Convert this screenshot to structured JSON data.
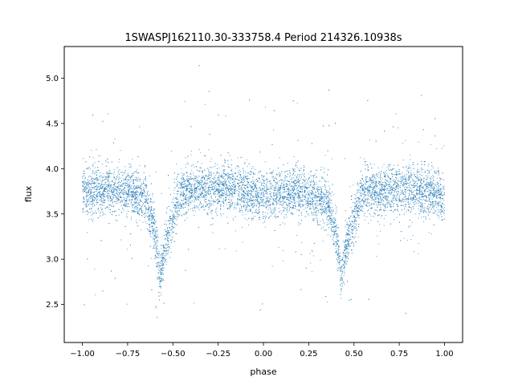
{
  "chart_data": {
    "type": "scatter",
    "title": "1SWASPJ162110.30-333758.4 Period 214326.10938s",
    "xlabel": "phase",
    "ylabel": "flux",
    "xlim": [
      -1.1,
      1.1
    ],
    "ylim": [
      2.08,
      5.35
    ],
    "xticks": [
      -1.0,
      -0.75,
      -0.5,
      -0.25,
      0.0,
      0.25,
      0.5,
      0.75,
      1.0
    ],
    "xtick_labels": [
      "−1.00",
      "−0.75",
      "−0.50",
      "−0.25",
      "0.00",
      "0.25",
      "0.50",
      "0.75",
      "1.00"
    ],
    "yticks": [
      2.5,
      3.0,
      3.5,
      4.0,
      4.5,
      5.0
    ],
    "ytick_labels": [
      "2.5",
      "3.0",
      "3.5",
      "4.0",
      "4.5",
      "5.0"
    ],
    "grid": false,
    "marker_color": "#1f77b4",
    "series": [
      {
        "phase_range": [
          -1.0,
          1.0
        ],
        "baseline_flux": 3.75,
        "baseline_scatter": 0.13,
        "dips": [
          {
            "phase": -0.57,
            "min_flux": 2.8
          },
          {
            "phase": 0.43,
            "min_flux": 2.8
          }
        ],
        "profile": [
          {
            "x": -1.0,
            "y": 3.75
          },
          {
            "x": -0.8,
            "y": 3.76
          },
          {
            "x": -0.65,
            "y": 3.68
          },
          {
            "x": -0.6,
            "y": 3.3
          },
          {
            "x": -0.57,
            "y": 2.8
          },
          {
            "x": -0.53,
            "y": 3.25
          },
          {
            "x": -0.45,
            "y": 3.75
          },
          {
            "x": -0.2,
            "y": 3.8
          },
          {
            "x": 0.0,
            "y": 3.7
          },
          {
            "x": 0.2,
            "y": 3.75
          },
          {
            "x": 0.35,
            "y": 3.65
          },
          {
            "x": 0.4,
            "y": 3.3
          },
          {
            "x": 0.43,
            "y": 2.8
          },
          {
            "x": 0.47,
            "y": 3.25
          },
          {
            "x": 0.55,
            "y": 3.75
          },
          {
            "x": 0.8,
            "y": 3.78
          },
          {
            "x": 1.0,
            "y": 3.7
          }
        ]
      }
    ]
  }
}
